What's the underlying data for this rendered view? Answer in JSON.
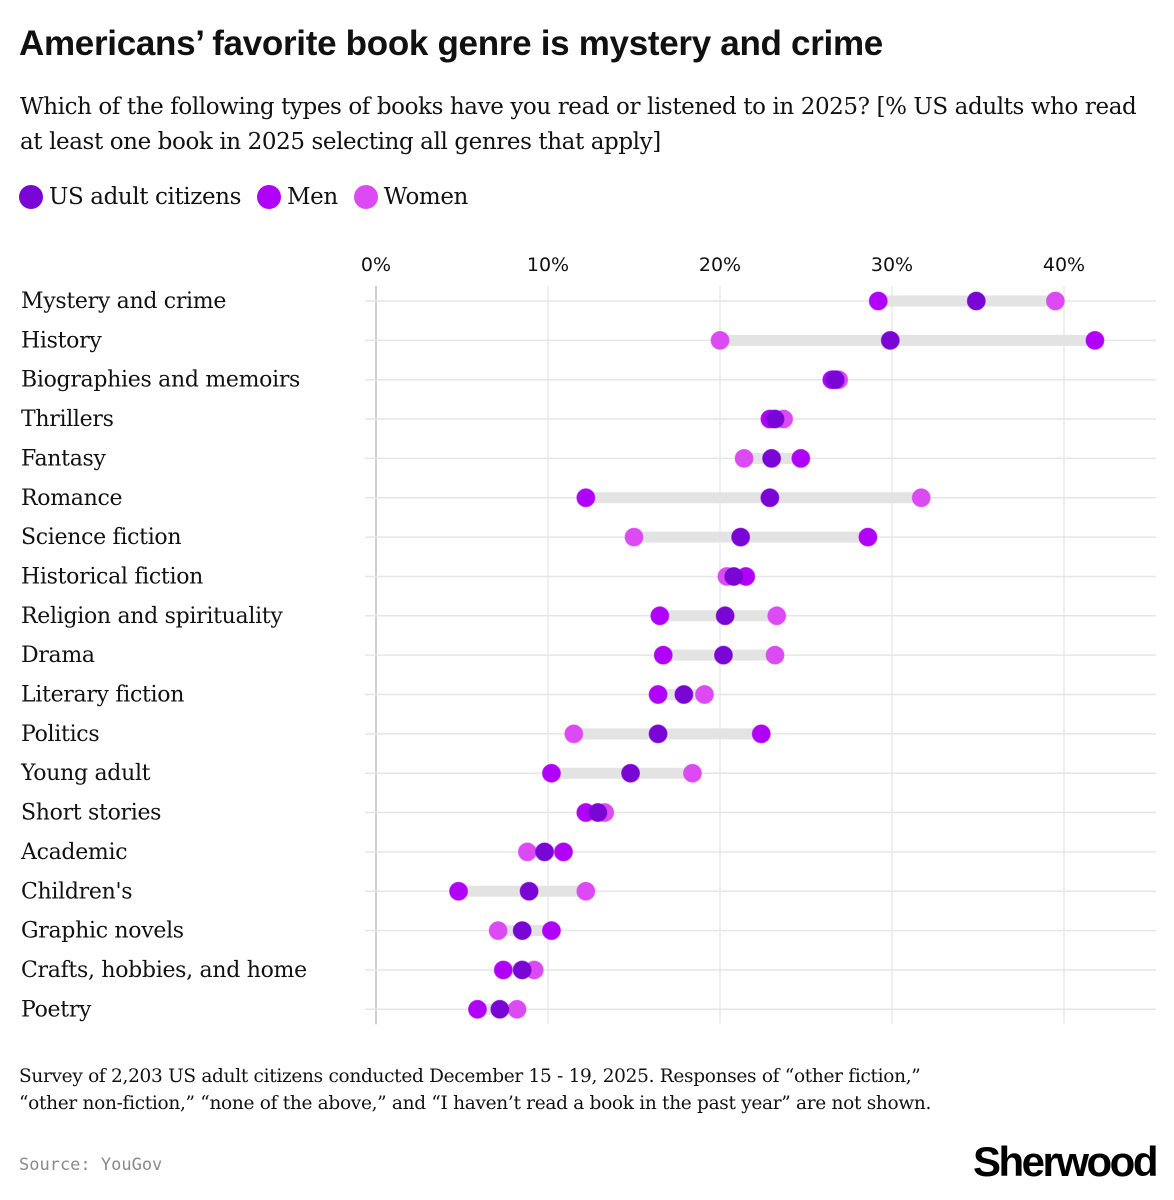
{
  "header": {
    "title": "Americans’ favorite book genre is mystery and crime",
    "subtitle": "Which of the following types of books have you read or listened to in 2025? [% US adults who read at least one book in 2025 selecting all genres that apply]"
  },
  "legend": [
    {
      "label": "US adult citizens",
      "color": "#7a06d6"
    },
    {
      "label": "Men",
      "color": "#b100f9"
    },
    {
      "label": "Women",
      "color": "#dc4af3"
    }
  ],
  "footer": {
    "note": "Survey of 2,203 US adult citizens conducted December 15 - 19, 2025. Responses of “other fiction,” “other non-fiction,” “none of the above,” and “I haven’t read a book in the past year” are not shown.",
    "source": "Source: YouGov",
    "logo": "Sherwood"
  },
  "colors": {
    "us_adults": "#7a06d6",
    "men": "#b100f9",
    "women": "#dc4af3",
    "range_bar": "#e3e3e3",
    "gridline": "#e6e6e6",
    "axis": "#cfcfcf"
  },
  "chart_data": {
    "type": "dot_range",
    "title": "Americans’ favorite book genre is mystery and crime",
    "subtitle": "Which of the following types of books have you read or listened to in 2025? [% US adults who read at least one book in 2025 selecting all genres that apply]",
    "xlabel": "",
    "ylabel": "",
    "x_ticks": [
      "0%",
      "10%",
      "20%",
      "30%",
      "40%"
    ],
    "x_tick_values": [
      0,
      10,
      20,
      30,
      40
    ],
    "xlim": [
      0,
      45
    ],
    "grid": true,
    "legend_position": "top-left",
    "categories": [
      "Mystery and crime",
      "History",
      "Biographies and memoirs",
      "Thrillers",
      "Fantasy",
      "Romance",
      "Science fiction",
      "Historical fiction",
      "Religion and spirituality",
      "Drama",
      "Literary fiction",
      "Politics",
      "Young adult",
      "Short stories",
      "Academic",
      "Children's",
      "Graphic novels",
      "Crafts, hobbies, and home",
      "Poetry"
    ],
    "series": [
      {
        "name": "US adult citizens",
        "color": "#7a06d6",
        "values": [
          34.9,
          29.9,
          26.7,
          23.2,
          23.0,
          22.9,
          21.2,
          20.8,
          20.3,
          20.2,
          17.9,
          16.4,
          14.8,
          12.9,
          9.8,
          8.9,
          8.5,
          8.5,
          7.2
        ]
      },
      {
        "name": "Men",
        "color": "#b100f9",
        "values": [
          29.2,
          41.8,
          26.5,
          22.9,
          24.7,
          12.2,
          28.6,
          21.5,
          16.5,
          16.7,
          16.4,
          22.4,
          10.2,
          12.2,
          10.9,
          4.8,
          10.2,
          7.4,
          5.9
        ]
      },
      {
        "name": "Women",
        "color": "#dc4af3",
        "values": [
          39.5,
          20.0,
          26.9,
          23.7,
          21.4,
          31.7,
          15.0,
          20.4,
          23.3,
          23.2,
          19.1,
          11.5,
          18.4,
          13.3,
          8.8,
          12.2,
          7.1,
          9.2,
          8.2
        ]
      }
    ]
  }
}
